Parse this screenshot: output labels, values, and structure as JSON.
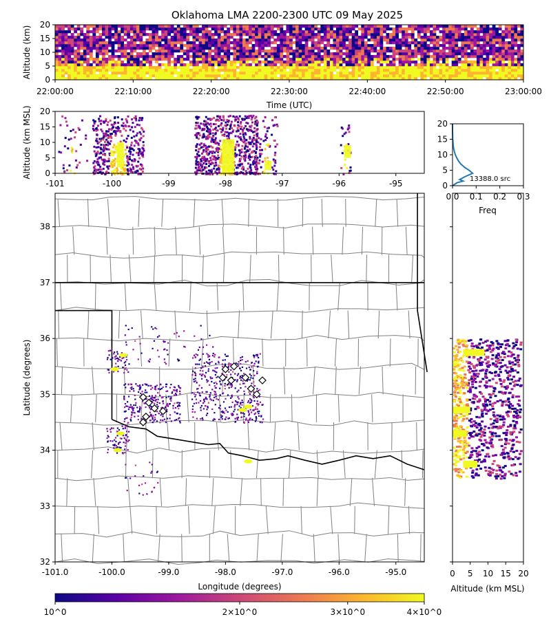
{
  "title": "Oklahoma LMA 2200-2300 UTC 09 May 2025",
  "colors": {
    "colormap": [
      "#0d0887",
      "#5c01a6",
      "#9c179e",
      "#cc4778",
      "#ed7953",
      "#fdb42f",
      "#f0f921"
    ],
    "county_lines": "#808080",
    "state_lines": "#000000",
    "histogram_line": "#1f77b4"
  },
  "chart_data": [
    {
      "panel": "time-altitude",
      "type": "heatmap",
      "xlabel": "Time (UTC)",
      "ylabel": "Altitude (km)",
      "x_ticks": [
        "22:00:00",
        "22:10:00",
        "22:20:00",
        "22:30:00",
        "22:40:00",
        "22:50:00",
        "23:00:00"
      ],
      "y_ticks": [
        "0",
        "5",
        "10",
        "15",
        "20"
      ],
      "ylim": [
        0,
        20
      ]
    },
    {
      "panel": "longitude-altitude",
      "type": "heatmap",
      "xlabel": "",
      "ylabel": "Altitude (km MSL)",
      "x_ticks": [
        "-101",
        "-100",
        "-99",
        "-98",
        "-97",
        "-96",
        "-95"
      ],
      "y_ticks": [
        "0",
        "5",
        "10",
        "15",
        "20"
      ],
      "xlim": [
        -101,
        -94.5
      ],
      "ylim": [
        0,
        20
      ]
    },
    {
      "panel": "altitude-histogram",
      "type": "line",
      "xlabel": "Freq",
      "ylabel": "",
      "annotation": "13388.0 src",
      "x_ticks": [
        "0.0",
        "0.1",
        "0.2",
        "0.3"
      ],
      "y_ticks": [
        "0",
        "5",
        "10",
        "15",
        "20"
      ],
      "xlim": [
        0,
        0.3
      ],
      "ylim": [
        0,
        20
      ],
      "freq": [
        0.0,
        0.02,
        0.045,
        0.03,
        0.055,
        0.085,
        0.07,
        0.05,
        0.035,
        0.025,
        0.018,
        0.012,
        0.008,
        0.005,
        0.003,
        0.002,
        0.001,
        0.0005,
        0.0002,
        0.0001,
        0.0
      ],
      "altitude": [
        0,
        1,
        1.5,
        2,
        3,
        4,
        5,
        6,
        7,
        8,
        9,
        10,
        11,
        12,
        13,
        14,
        15,
        16,
        17,
        18,
        20
      ]
    },
    {
      "panel": "plan-view",
      "type": "scatter",
      "xlabel": "Longitude (degrees)",
      "ylabel": "Latitude (degrees)",
      "x_ticks": [
        "-101.0",
        "-100.0",
        "-99.0",
        "-98.0",
        "-97.0",
        "-96.0",
        "-95.0"
      ],
      "y_ticks": [
        "32",
        "33",
        "34",
        "35",
        "36",
        "37",
        "38"
      ],
      "xlim": [
        -101,
        -94.5
      ],
      "ylim": [
        32,
        38.6
      ],
      "stations": [
        {
          "lon": -98.0,
          "lat": 35.45
        },
        {
          "lon": -97.85,
          "lat": 35.5
        },
        {
          "lon": -98.05,
          "lat": 35.3
        },
        {
          "lon": -97.9,
          "lat": 35.25
        },
        {
          "lon": -97.65,
          "lat": 35.3
        },
        {
          "lon": -97.35,
          "lat": 35.25
        },
        {
          "lon": -97.55,
          "lat": 35.1
        },
        {
          "lon": -97.45,
          "lat": 35.0
        },
        {
          "lon": -99.45,
          "lat": 34.95
        },
        {
          "lon": -99.35,
          "lat": 34.85
        },
        {
          "lon": -99.25,
          "lat": 34.75
        },
        {
          "lon": -99.1,
          "lat": 34.7
        },
        {
          "lon": -99.4,
          "lat": 34.6
        },
        {
          "lon": -99.45,
          "lat": 34.5
        }
      ]
    },
    {
      "panel": "altitude-latitude",
      "type": "heatmap",
      "xlabel": "Altitude (km MSL)",
      "ylabel": "",
      "x_ticks": [
        "0",
        "5",
        "10",
        "15",
        "20"
      ],
      "xlim": [
        0,
        20
      ],
      "ylim": [
        32,
        38.6
      ]
    },
    {
      "panel": "colorbar",
      "type": "heatmap",
      "tick_labels": [
        "10^0",
        "2×10^0",
        "3×10^0",
        "4×10^0"
      ],
      "tick_values": [
        1,
        2,
        3,
        4
      ]
    }
  ]
}
